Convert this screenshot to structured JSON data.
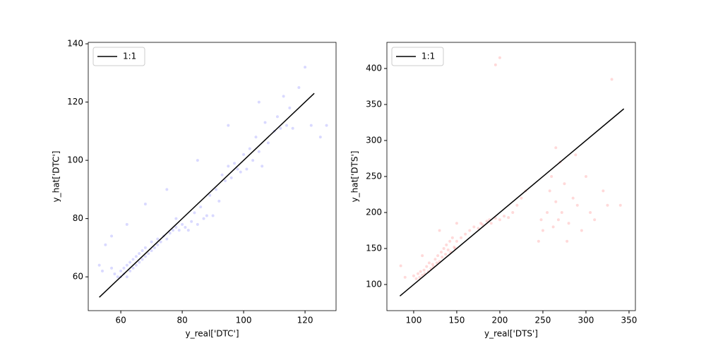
{
  "chart_data": [
    {
      "type": "scatter",
      "xlabel": "y_real['DTC']",
      "ylabel": "y_hat['DTC']",
      "xlim": [
        49.4,
        130.1
      ],
      "ylim": [
        48.4,
        140.5
      ],
      "xticks": [
        60,
        80,
        100,
        120
      ],
      "yticks": [
        60,
        80,
        100,
        120,
        140
      ],
      "legend": "upper left",
      "series": [
        {
          "color": "blue",
          "alpha": 0.15,
          "x": [
            53,
            54,
            55,
            57,
            58,
            59,
            60,
            60,
            61,
            61,
            62,
            62,
            63,
            63,
            64,
            64,
            65,
            65,
            66,
            66,
            67,
            67,
            68,
            68,
            69,
            70,
            70,
            71,
            72,
            72,
            73,
            74,
            75,
            76,
            77,
            78,
            78,
            79,
            80,
            81,
            82,
            83,
            84,
            85,
            86,
            87,
            88,
            89,
            90,
            91,
            92,
            93,
            94,
            95,
            96,
            97,
            98,
            99,
            100,
            101,
            102,
            103,
            104,
            105,
            106,
            107,
            108,
            110,
            111,
            112,
            113,
            114,
            115,
            116,
            118,
            120,
            122,
            125,
            127,
            57,
            62,
            68,
            75,
            85,
            95,
            105
          ],
          "y": [
            64,
            62,
            71,
            63,
            61,
            60,
            60,
            62,
            61,
            63,
            60,
            64,
            62,
            65,
            63,
            66,
            64,
            67,
            65,
            68,
            66,
            69,
            67,
            70,
            68,
            69,
            72,
            70,
            71,
            73,
            72,
            74,
            73,
            75,
            76,
            77,
            80,
            76,
            78,
            77,
            76,
            79,
            82,
            78,
            84,
            80,
            81,
            88,
            81,
            90,
            86,
            95,
            93,
            98,
            94,
            99,
            97,
            96,
            102,
            97,
            104,
            100,
            108,
            103,
            98,
            113,
            106,
            110,
            115,
            111,
            122,
            112,
            118,
            111,
            125,
            132,
            112,
            108,
            112,
            74,
            78,
            85,
            90,
            100,
            112,
            120
          ]
        },
        {
          "name": "1:1",
          "color": "black",
          "x": [
            53,
            123
          ],
          "y": [
            53,
            123
          ]
        }
      ]
    },
    {
      "type": "scatter",
      "xlabel": "y_real['DTS']",
      "ylabel": "y_hat['DTS']",
      "xlim": [
        68.9,
        357.4
      ],
      "ylim": [
        63.7,
        436.3
      ],
      "xticks": [
        100,
        150,
        200,
        250,
        300,
        350
      ],
      "yticks": [
        100,
        150,
        200,
        250,
        300,
        350,
        400
      ],
      "legend": "upper left",
      "series": [
        {
          "color": "red",
          "alpha": 0.15,
          "x": [
            85,
            90,
            100,
            103,
            105,
            107,
            108,
            110,
            112,
            113,
            115,
            117,
            118,
            120,
            122,
            123,
            125,
            127,
            128,
            130,
            132,
            133,
            135,
            137,
            138,
            140,
            142,
            143,
            145,
            147,
            148,
            150,
            155,
            160,
            165,
            170,
            175,
            178,
            180,
            185,
            188,
            190,
            195,
            200,
            205,
            210,
            215,
            220,
            225,
            230,
            245,
            248,
            250,
            255,
            258,
            260,
            262,
            265,
            268,
            270,
            272,
            275,
            278,
            280,
            285,
            288,
            290,
            295,
            300,
            305,
            310,
            320,
            325,
            330,
            340,
            195,
            200,
            110,
            130,
            150,
            265
          ],
          "y": [
            126,
            110,
            112,
            108,
            115,
            110,
            118,
            113,
            120,
            115,
            125,
            118,
            130,
            122,
            128,
            125,
            135,
            130,
            140,
            132,
            145,
            138,
            150,
            142,
            155,
            148,
            160,
            145,
            165,
            152,
            150,
            160,
            165,
            170,
            175,
            180,
            178,
            185,
            183,
            188,
            190,
            185,
            192,
            190,
            195,
            193,
            200,
            210,
            220,
            230,
            160,
            190,
            175,
            200,
            230,
            250,
            180,
            215,
            190,
            270,
            200,
            240,
            160,
            185,
            220,
            280,
            210,
            175,
            250,
            200,
            190,
            230,
            210,
            385,
            210,
            405,
            415,
            140,
            175,
            185,
            290
          ]
        },
        {
          "name": "1:1",
          "color": "black",
          "x": [
            84,
            344
          ],
          "y": [
            84,
            344
          ]
        }
      ]
    }
  ]
}
